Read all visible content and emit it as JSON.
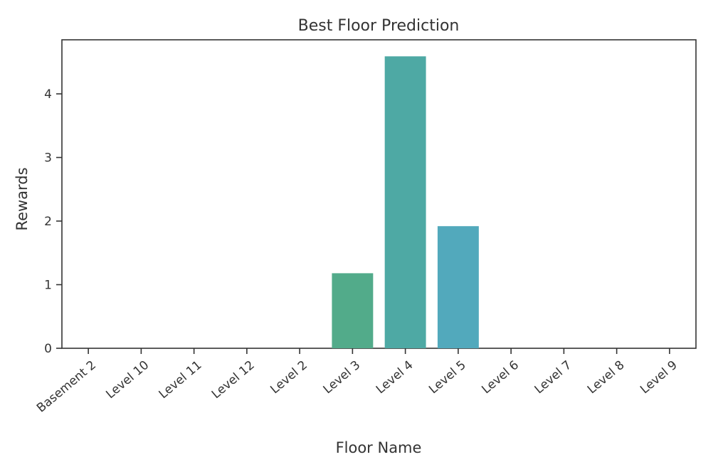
{
  "chart_data": {
    "type": "bar",
    "title": "Best Floor Prediction",
    "xlabel": "Floor Name",
    "ylabel": "Rewards",
    "categories": [
      "Basement 2",
      "Level 10",
      "Level 11",
      "Level 12",
      "Level 2",
      "Level 3",
      "Level 4",
      "Level 5",
      "Level 6",
      "Level 7",
      "Level 8",
      "Level 9"
    ],
    "values": [
      0,
      0,
      0,
      0,
      0,
      1.18,
      4.59,
      1.92,
      0,
      0,
      0,
      0
    ],
    "bar_colors": [
      "#4f6fae",
      "#4a7cb0",
      "#4a8fb0",
      "#4aa0ae",
      "#4aadab",
      "#52ab8a",
      "#4ea9a4",
      "#52a9bc",
      "#5aa7c8",
      "#5ea3cf",
      "#6a9bd2",
      "#7592d2"
    ],
    "ylim": [
      0,
      4.85
    ],
    "yticks": [
      0,
      1,
      2,
      3,
      4
    ],
    "grid": false,
    "legend": "none"
  }
}
